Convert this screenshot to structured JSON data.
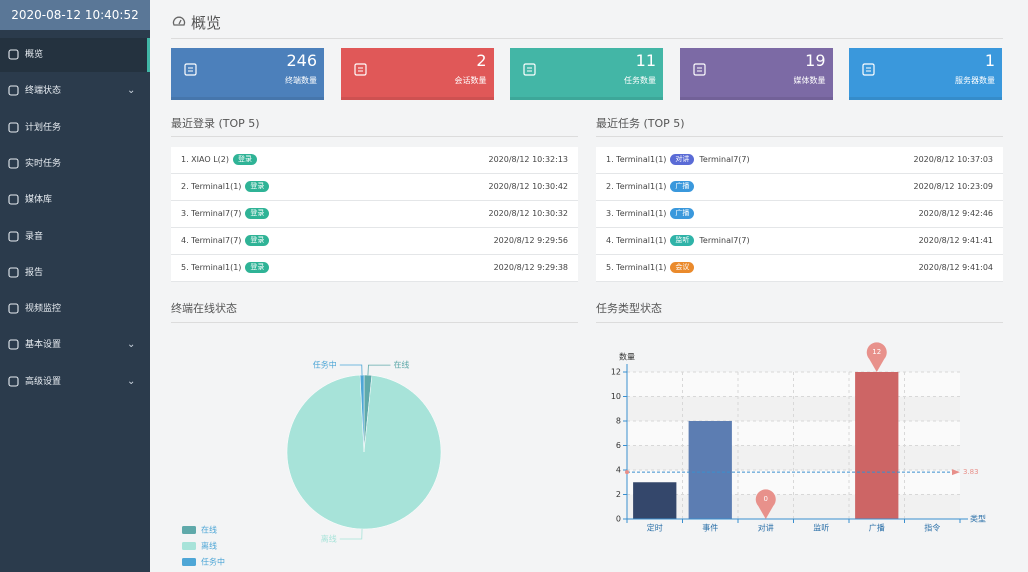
{
  "sidebar": {
    "datetime": "2020-08-12 10:40:52",
    "menu": [
      "概览",
      "终端状态",
      "计划任务",
      "实时任务",
      "媒体库",
      "录音",
      "报告",
      "视频监控",
      "基本设置",
      "高级设置"
    ]
  },
  "header": {
    "title": "概览"
  },
  "cards": [
    {
      "value": 246,
      "label": "终端数量",
      "color": "#4c80bb"
    },
    {
      "value": 2,
      "label": "会话数量",
      "color": "#e05858"
    },
    {
      "value": 11,
      "label": "任务数量",
      "color": "#43b6a6"
    },
    {
      "value": 19,
      "label": "媒体数量",
      "color": "#7c6aa5"
    },
    {
      "value": 1,
      "label": "服务器数量",
      "color": "#3a98dc"
    }
  ],
  "recent_logins": {
    "title": "最近登录 (TOP 5)",
    "rows": [
      {
        "name": "1. XIAO L(2)",
        "tag": "登录",
        "tag_color": "#2fb396",
        "time": "2020/8/12 10:32:13"
      },
      {
        "name": "2. Terminal1(1)",
        "tag": "登录",
        "tag_color": "#2fb396",
        "time": "2020/8/12 10:30:42"
      },
      {
        "name": "3. Terminal7(7)",
        "tag": "登录",
        "tag_color": "#2fb396",
        "time": "2020/8/12 10:30:32"
      },
      {
        "name": "4. Terminal7(7)",
        "tag": "登录",
        "tag_color": "#2fb396",
        "time": "2020/8/12 9:29:56"
      },
      {
        "name": "5. Terminal1(1)",
        "tag": "登录",
        "tag_color": "#2fb396",
        "time": "2020/8/12 9:29:38"
      }
    ]
  },
  "recent_tasks": {
    "title": "最近任务 (TOP 5)",
    "rows": [
      {
        "name": "1. Terminal1(1)",
        "tag": "对讲",
        "tag_color": "#5a6bd6",
        "target": "Terminal7(7)",
        "time": "2020/8/12 10:37:03"
      },
      {
        "name": "2. Terminal1(1)",
        "tag": "广播",
        "tag_color": "#3a98dc",
        "time": "2020/8/12 10:23:09"
      },
      {
        "name": "3. Terminal1(1)",
        "tag": "广播",
        "tag_color": "#3a98dc",
        "time": "2020/8/12 9:42:46"
      },
      {
        "name": "4. Terminal1(1)",
        "tag": "监听",
        "tag_color": "#2fb3a8",
        "target": "Terminal7(7)",
        "time": "2020/8/12 9:41:41"
      },
      {
        "name": "5. Terminal1(1)",
        "tag": "会议",
        "tag_color": "#ea8a2c",
        "time": "2020/8/12 9:41:04"
      }
    ]
  },
  "chart_data": [
    {
      "type": "pie",
      "title": "终端在线状态",
      "categories": [
        "在线",
        "离线",
        "任务中"
      ],
      "values": [
        4,
        240,
        2
      ],
      "colors": [
        "#5fa9aa",
        "#a7e3d9",
        "#4ea6d6"
      ],
      "legend": "bottom-left"
    },
    {
      "type": "bar",
      "title": "任务类型状态",
      "y_label": "数量",
      "x_label": "类型",
      "categories": [
        "定时",
        "事件",
        "对讲",
        "监听",
        "广播",
        "指令"
      ],
      "values": [
        3,
        8,
        0,
        0,
        12,
        0
      ],
      "colors": [
        "#34476b",
        "#5c7db2",
        "#e09b9b",
        "#6fb8a8",
        "#cd6565",
        "#8a9bc0"
      ],
      "ylim": [
        0,
        12
      ],
      "yticks": [
        0,
        2,
        4,
        6,
        8,
        10,
        12
      ],
      "grid": true,
      "average": 3.83,
      "average_color": "#3a8fcf"
    }
  ]
}
